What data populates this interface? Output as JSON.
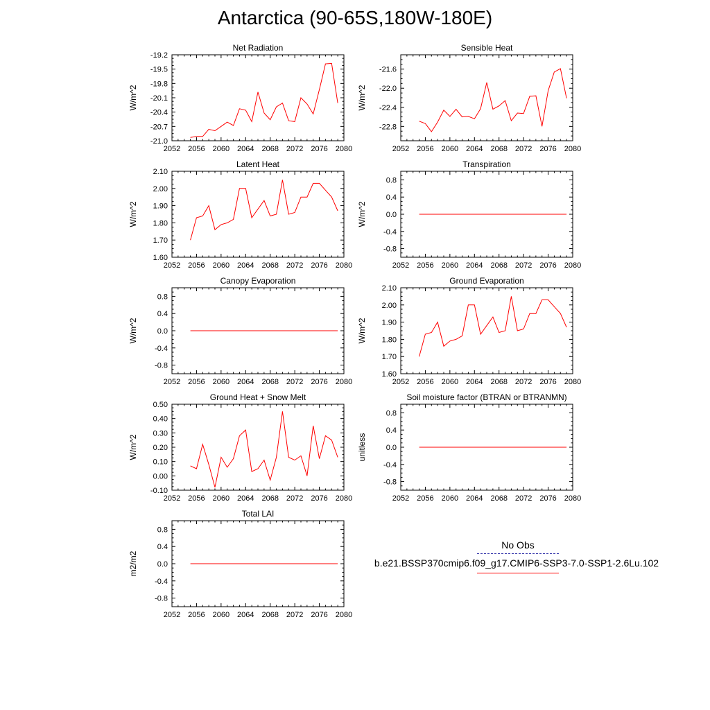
{
  "title": "Antarctica (90-65S,180W-180E)",
  "colors": {
    "model_line": "#ff0000",
    "obs_line": "#3333aa",
    "axes": "#000000"
  },
  "legend": {
    "obs_label": "No Obs",
    "case_label": "b.e21.BSSP370cmip6.f09_g17.CMIP6-SSP3-7.0-SSP1-2.6Lu.102"
  },
  "chart_data": [
    {
      "type": "line",
      "title": "Net Radiation",
      "ylabel": "W/m^2",
      "xlim": [
        2052,
        2080
      ],
      "ylim": [
        -21.0,
        -19.2
      ],
      "xticks": [
        2052,
        2056,
        2060,
        2064,
        2068,
        2072,
        2076,
        2080
      ],
      "xtick_labels": [
        "2052",
        "2056",
        "2060",
        "2064",
        "2068",
        "2072",
        "2076",
        "2080"
      ],
      "yticks": [
        -21.0,
        -20.7,
        -20.4,
        -20.1,
        -19.8,
        -19.5,
        -19.2
      ],
      "ytick_labels": [
        "-21.0",
        "-20.7",
        "-20.4",
        "-20.1",
        "-19.8",
        "-19.5",
        "-19.2"
      ],
      "x": [
        2055,
        2056,
        2057,
        2058,
        2059,
        2060,
        2061,
        2062,
        2063,
        2064,
        2065,
        2066,
        2067,
        2068,
        2069,
        2070,
        2071,
        2072,
        2073,
        2074,
        2075,
        2076,
        2077,
        2078,
        2079
      ],
      "series": [
        {
          "values": [
            -20.93,
            -20.91,
            -20.91,
            -20.76,
            -20.79,
            -20.7,
            -20.61,
            -20.68,
            -20.33,
            -20.36,
            -20.6,
            -19.98,
            -20.42,
            -20.56,
            -20.29,
            -20.21,
            -20.58,
            -20.6,
            -20.1,
            -20.23,
            -20.44,
            -19.93,
            -19.39,
            -19.38,
            -20.21
          ]
        }
      ]
    },
    {
      "type": "line",
      "title": "Sensible Heat",
      "ylabel": "W/m^2",
      "xlim": [
        2052,
        2080
      ],
      "ylim": [
        -23.1,
        -21.3
      ],
      "xticks": [
        2052,
        2056,
        2060,
        2064,
        2068,
        2072,
        2076,
        2080
      ],
      "xtick_labels": [
        "2052",
        "2056",
        "2060",
        "2064",
        "2068",
        "2072",
        "2076",
        "2080"
      ],
      "yticks": [
        -22.8,
        -22.4,
        -22.0,
        -21.6
      ],
      "ytick_labels": [
        "-22.8",
        "-22.4",
        "-22.0",
        "-21.6"
      ],
      "x": [
        2055,
        2056,
        2057,
        2058,
        2059,
        2060,
        2061,
        2062,
        2063,
        2064,
        2065,
        2066,
        2067,
        2068,
        2069,
        2070,
        2071,
        2072,
        2073,
        2074,
        2075,
        2076,
        2077,
        2078,
        2079
      ],
      "series": [
        {
          "values": [
            -22.69,
            -22.74,
            -22.91,
            -22.71,
            -22.46,
            -22.59,
            -22.44,
            -22.6,
            -22.59,
            -22.64,
            -22.43,
            -21.88,
            -22.44,
            -22.37,
            -22.26,
            -22.68,
            -22.52,
            -22.53,
            -22.17,
            -22.16,
            -22.8,
            -22.05,
            -21.66,
            -21.59,
            -22.21
          ]
        }
      ]
    },
    {
      "type": "line",
      "title": "Latent Heat",
      "ylabel": "W/m^2",
      "xlim": [
        2052,
        2080
      ],
      "ylim": [
        1.6,
        2.1
      ],
      "xticks": [
        2052,
        2056,
        2060,
        2064,
        2068,
        2072,
        2076,
        2080
      ],
      "xtick_labels": [
        "2052",
        "2056",
        "2060",
        "2064",
        "2068",
        "2072",
        "2076",
        "2080"
      ],
      "yticks": [
        1.6,
        1.7,
        1.8,
        1.9,
        2.0,
        2.1
      ],
      "ytick_labels": [
        "1.60",
        "1.70",
        "1.80",
        "1.90",
        "2.00",
        "2.10"
      ],
      "x": [
        2055,
        2056,
        2057,
        2058,
        2059,
        2060,
        2061,
        2062,
        2063,
        2064,
        2065,
        2066,
        2067,
        2068,
        2069,
        2070,
        2071,
        2072,
        2073,
        2074,
        2075,
        2076,
        2077,
        2078,
        2079
      ],
      "series": [
        {
          "values": [
            1.7,
            1.83,
            1.84,
            1.9,
            1.76,
            1.79,
            1.8,
            1.82,
            2.0,
            2.0,
            1.83,
            1.88,
            1.93,
            1.84,
            1.85,
            2.05,
            1.85,
            1.86,
            1.95,
            1.95,
            2.03,
            2.03,
            1.99,
            1.95,
            1.87
          ]
        }
      ]
    },
    {
      "type": "line",
      "title": "Transpiration",
      "ylabel": "W/m^2",
      "xlim": [
        2052,
        2080
      ],
      "ylim": [
        -1.0,
        1.0
      ],
      "xticks": [
        2052,
        2056,
        2060,
        2064,
        2068,
        2072,
        2076,
        2080
      ],
      "xtick_labels": [
        "2052",
        "2056",
        "2060",
        "2064",
        "2068",
        "2072",
        "2076",
        "2080"
      ],
      "yticks": [
        -0.8,
        -0.4,
        0.0,
        0.4,
        0.8
      ],
      "ytick_labels": [
        "-0.8",
        "-0.4",
        "0.0",
        "0.4",
        "0.8"
      ],
      "x": [
        2055,
        2056,
        2057,
        2058,
        2059,
        2060,
        2061,
        2062,
        2063,
        2064,
        2065,
        2066,
        2067,
        2068,
        2069,
        2070,
        2071,
        2072,
        2073,
        2074,
        2075,
        2076,
        2077,
        2078,
        2079
      ],
      "series": [
        {
          "values": [
            0,
            0,
            0,
            0,
            0,
            0,
            0,
            0,
            0,
            0,
            0,
            0,
            0,
            0,
            0,
            0,
            0,
            0,
            0,
            0,
            0,
            0,
            0,
            0,
            0
          ]
        }
      ]
    },
    {
      "type": "line",
      "title": "Canopy Evaporation",
      "ylabel": "W/m^2",
      "xlim": [
        2052,
        2080
      ],
      "ylim": [
        -1.0,
        1.0
      ],
      "xticks": [
        2052,
        2056,
        2060,
        2064,
        2068,
        2072,
        2076,
        2080
      ],
      "xtick_labels": [
        "2052",
        "2056",
        "2060",
        "2064",
        "2068",
        "2072",
        "2076",
        "2080"
      ],
      "yticks": [
        -0.8,
        -0.4,
        0.0,
        0.4,
        0.8
      ],
      "ytick_labels": [
        "-0.8",
        "-0.4",
        "0.0",
        "0.4",
        "0.8"
      ],
      "x": [
        2055,
        2056,
        2057,
        2058,
        2059,
        2060,
        2061,
        2062,
        2063,
        2064,
        2065,
        2066,
        2067,
        2068,
        2069,
        2070,
        2071,
        2072,
        2073,
        2074,
        2075,
        2076,
        2077,
        2078,
        2079
      ],
      "series": [
        {
          "values": [
            0,
            0,
            0,
            0,
            0,
            0,
            0,
            0,
            0,
            0,
            0,
            0,
            0,
            0,
            0,
            0,
            0,
            0,
            0,
            0,
            0,
            0,
            0,
            0,
            0
          ]
        }
      ]
    },
    {
      "type": "line",
      "title": "Ground Evaporation",
      "ylabel": "W/m^2",
      "xlim": [
        2052,
        2080
      ],
      "ylim": [
        1.6,
        2.1
      ],
      "xticks": [
        2052,
        2056,
        2060,
        2064,
        2068,
        2072,
        2076,
        2080
      ],
      "xtick_labels": [
        "2052",
        "2056",
        "2060",
        "2064",
        "2068",
        "2072",
        "2076",
        "2080"
      ],
      "yticks": [
        1.6,
        1.7,
        1.8,
        1.9,
        2.0,
        2.1
      ],
      "ytick_labels": [
        "1.60",
        "1.70",
        "1.80",
        "1.90",
        "2.00",
        "2.10"
      ],
      "x": [
        2055,
        2056,
        2057,
        2058,
        2059,
        2060,
        2061,
        2062,
        2063,
        2064,
        2065,
        2066,
        2067,
        2068,
        2069,
        2070,
        2071,
        2072,
        2073,
        2074,
        2075,
        2076,
        2077,
        2078,
        2079
      ],
      "series": [
        {
          "values": [
            1.7,
            1.83,
            1.84,
            1.9,
            1.76,
            1.79,
            1.8,
            1.82,
            2.0,
            2.0,
            1.83,
            1.88,
            1.93,
            1.84,
            1.85,
            2.05,
            1.85,
            1.86,
            1.95,
            1.95,
            2.03,
            2.03,
            1.99,
            1.95,
            1.87
          ]
        }
      ]
    },
    {
      "type": "line",
      "title": "Ground Heat + Snow Melt",
      "ylabel": "W/m^2",
      "xlim": [
        2052,
        2080
      ],
      "ylim": [
        -0.1,
        0.5
      ],
      "xticks": [
        2052,
        2056,
        2060,
        2064,
        2068,
        2072,
        2076,
        2080
      ],
      "xtick_labels": [
        "2052",
        "2056",
        "2060",
        "2064",
        "2068",
        "2072",
        "2076",
        "2080"
      ],
      "yticks": [
        -0.1,
        0.0,
        0.1,
        0.2,
        0.3,
        0.4,
        0.5
      ],
      "ytick_labels": [
        "-0.10",
        "0.00",
        "0.10",
        "0.20",
        "0.30",
        "0.40",
        "0.50"
      ],
      "x": [
        2055,
        2056,
        2057,
        2058,
        2059,
        2060,
        2061,
        2062,
        2063,
        2064,
        2065,
        2066,
        2067,
        2068,
        2069,
        2070,
        2071,
        2072,
        2073,
        2074,
        2075,
        2076,
        2077,
        2078,
        2079
      ],
      "series": [
        {
          "values": [
            0.07,
            0.05,
            0.22,
            0.08,
            -0.08,
            0.13,
            0.06,
            0.12,
            0.28,
            0.32,
            0.03,
            0.05,
            0.11,
            -0.03,
            0.13,
            0.45,
            0.13,
            0.11,
            0.14,
            0.0,
            0.35,
            0.12,
            0.28,
            0.25,
            0.13
          ]
        }
      ]
    },
    {
      "type": "line",
      "title": "Soil moisture factor (BTRAN or BTRANMN)",
      "ylabel": "unitless",
      "xlim": [
        2052,
        2080
      ],
      "ylim": [
        -1.0,
        1.0
      ],
      "xticks": [
        2052,
        2056,
        2060,
        2064,
        2068,
        2072,
        2076,
        2080
      ],
      "xtick_labels": [
        "2052",
        "2056",
        "2060",
        "2064",
        "2068",
        "2072",
        "2076",
        "2080"
      ],
      "yticks": [
        -0.8,
        -0.4,
        0.0,
        0.4,
        0.8
      ],
      "ytick_labels": [
        "-0.8",
        "-0.4",
        "0.0",
        "0.4",
        "0.8"
      ],
      "x": [
        2055,
        2056,
        2057,
        2058,
        2059,
        2060,
        2061,
        2062,
        2063,
        2064,
        2065,
        2066,
        2067,
        2068,
        2069,
        2070,
        2071,
        2072,
        2073,
        2074,
        2075,
        2076,
        2077,
        2078,
        2079
      ],
      "series": [
        {
          "values": [
            0,
            0,
            0,
            0,
            0,
            0,
            0,
            0,
            0,
            0,
            0,
            0,
            0,
            0,
            0,
            0,
            0,
            0,
            0,
            0,
            0,
            0,
            0,
            0,
            0
          ]
        }
      ]
    },
    {
      "type": "line",
      "title": "Total LAI",
      "ylabel": "m2/m2",
      "xlim": [
        2052,
        2080
      ],
      "ylim": [
        -1.0,
        1.0
      ],
      "xticks": [
        2052,
        2056,
        2060,
        2064,
        2068,
        2072,
        2076,
        2080
      ],
      "xtick_labels": [
        "2052",
        "2056",
        "2060",
        "2064",
        "2068",
        "2072",
        "2076",
        "2080"
      ],
      "yticks": [
        -0.8,
        -0.4,
        0.0,
        0.4,
        0.8
      ],
      "ytick_labels": [
        "-0.8",
        "-0.4",
        "0.0",
        "0.4",
        "0.8"
      ],
      "x": [
        2055,
        2056,
        2057,
        2058,
        2059,
        2060,
        2061,
        2062,
        2063,
        2064,
        2065,
        2066,
        2067,
        2068,
        2069,
        2070,
        2071,
        2072,
        2073,
        2074,
        2075,
        2076,
        2077,
        2078,
        2079
      ],
      "series": [
        {
          "values": [
            0,
            0,
            0,
            0,
            0,
            0,
            0,
            0,
            0,
            0,
            0,
            0,
            0,
            0,
            0,
            0,
            0,
            0,
            0,
            0,
            0,
            0,
            0,
            0,
            0
          ]
        }
      ]
    }
  ]
}
